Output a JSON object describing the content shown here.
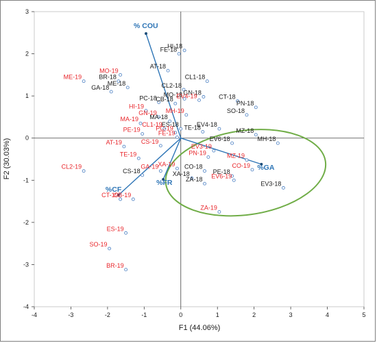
{
  "chart_data": {
    "type": "scatter",
    "xlabel": "F1 (44.06%)",
    "ylabel": "F2 (30.03%)",
    "xlim": [
      -4,
      5
    ],
    "ylim": [
      -4,
      3
    ],
    "xticks": [
      "-4",
      "-3",
      "-2",
      "-1",
      "0",
      "1",
      "2",
      "3",
      "4",
      "5"
    ],
    "yticks": [
      "-4",
      "-3",
      "-2",
      "-1",
      "0",
      "1",
      "2",
      "3"
    ],
    "grid": false,
    "colors": {
      "group_18": "#1a1a1a",
      "group_19": "#e8262b",
      "marker": "#5b8bc8",
      "vector": "#2e75b6",
      "ellipse": "#70ad47"
    },
    "points": [
      {
        "label": "HI-18",
        "x": 0.1,
        "y": 2.08,
        "group": "18"
      },
      {
        "label": "FE-18",
        "x": -0.05,
        "y": 2.0,
        "group": "18"
      },
      {
        "label": "AT-18",
        "x": -0.35,
        "y": 1.6,
        "group": "18"
      },
      {
        "label": "ME-19",
        "x": -2.65,
        "y": 1.35,
        "group": "19"
      },
      {
        "label": "MO-19",
        "x": -1.65,
        "y": 1.5,
        "group": "19"
      },
      {
        "label": "BR-18",
        "x": -1.7,
        "y": 1.35,
        "group": "18"
      },
      {
        "label": "ME-18",
        "x": -1.45,
        "y": 1.2,
        "group": "18"
      },
      {
        "label": "GA-18",
        "x": -1.9,
        "y": 1.1,
        "group": "18"
      },
      {
        "label": "CL1-18",
        "x": 0.72,
        "y": 1.35,
        "group": "18"
      },
      {
        "label": "CL2-18",
        "x": 0.08,
        "y": 1.15,
        "group": "18"
      },
      {
        "label": "GN-18",
        "x": 0.62,
        "y": 0.98,
        "group": "18"
      },
      {
        "label": "CT-18",
        "x": 1.55,
        "y": 0.88,
        "group": "18"
      },
      {
        "label": "MO-18",
        "x": 0.1,
        "y": 0.93,
        "group": "18"
      },
      {
        "label": "EV4-19",
        "x": 0.5,
        "y": 0.9,
        "group": "19"
      },
      {
        "label": "PC-18",
        "x": -0.6,
        "y": 0.85,
        "group": "18"
      },
      {
        "label": "CB-18",
        "x": -0.15,
        "y": 0.82,
        "group": "18"
      },
      {
        "label": "HI-19",
        "x": -0.95,
        "y": 0.65,
        "group": "19"
      },
      {
        "label": "PN-18",
        "x": 2.05,
        "y": 0.73,
        "group": "18"
      },
      {
        "label": "SO-18",
        "x": 1.8,
        "y": 0.55,
        "group": "18"
      },
      {
        "label": "MH-19",
        "x": 0.15,
        "y": 0.55,
        "group": "19"
      },
      {
        "label": "GN-19",
        "x": -0.6,
        "y": 0.5,
        "group": "19"
      },
      {
        "label": "MA-18",
        "x": -0.3,
        "y": 0.4,
        "group": "18"
      },
      {
        "label": "MA-19",
        "x": -1.1,
        "y": 0.35,
        "group": "19"
      },
      {
        "label": "ES-18",
        "x": 0.0,
        "y": 0.22,
        "group": "18"
      },
      {
        "label": "EV4-18",
        "x": 1.05,
        "y": 0.22,
        "group": "18"
      },
      {
        "label": "CL1-19",
        "x": -0.45,
        "y": 0.22,
        "group": "19"
      },
      {
        "label": "TE-18",
        "x": 0.6,
        "y": 0.15,
        "group": "18"
      },
      {
        "label": "PC-19",
        "x": -0.15,
        "y": 0.13,
        "group": "19"
      },
      {
        "label": "PE-19",
        "x": -1.05,
        "y": 0.1,
        "group": "19"
      },
      {
        "label": "MZ-18",
        "x": 2.05,
        "y": 0.08,
        "group": "18"
      },
      {
        "label": "FE-19",
        "x": -0.1,
        "y": 0.02,
        "group": "19"
      },
      {
        "label": "MH-18",
        "x": 2.65,
        "y": -0.12,
        "group": "18"
      },
      {
        "label": "EV6-18",
        "x": 1.4,
        "y": -0.12,
        "group": "18"
      },
      {
        "label": "AT-19",
        "x": -1.55,
        "y": -0.2,
        "group": "19"
      },
      {
        "label": "CS-19",
        "x": -0.55,
        "y": -0.18,
        "group": "19"
      },
      {
        "label": "EV3-19",
        "x": 0.9,
        "y": -0.3,
        "group": "19"
      },
      {
        "label": "TE-19",
        "x": -1.15,
        "y": -0.48,
        "group": "19"
      },
      {
        "label": "PN-19",
        "x": 0.75,
        "y": -0.45,
        "group": "19"
      },
      {
        "label": "MZ-19",
        "x": 1.8,
        "y": -0.52,
        "group": "19"
      },
      {
        "label": "CL2-19",
        "x": -2.65,
        "y": -0.78,
        "group": "19"
      },
      {
        "label": "CS-18",
        "x": -1.05,
        "y": -0.88,
        "group": "18"
      },
      {
        "label": "XA-19",
        "x": -0.1,
        "y": -0.72,
        "group": "19"
      },
      {
        "label": "GA-19",
        "x": -0.55,
        "y": -0.78,
        "group": "19"
      },
      {
        "label": "CO-18",
        "x": 0.65,
        "y": -0.78,
        "group": "18"
      },
      {
        "label": "CO-19",
        "x": 1.95,
        "y": -0.75,
        "group": "19"
      },
      {
        "label": "XA-18",
        "x": 0.3,
        "y": -0.95,
        "group": "18"
      },
      {
        "label": "PE-18",
        "x": 1.4,
        "y": -0.9,
        "group": "18"
      },
      {
        "label": "EV6-19",
        "x": 1.45,
        "y": -1.0,
        "group": "19"
      },
      {
        "label": "ZA-18",
        "x": 0.65,
        "y": -1.08,
        "group": "18"
      },
      {
        "label": "EV3-18",
        "x": 2.8,
        "y": -1.18,
        "group": "18"
      },
      {
        "label": "CT-19",
        "x": -1.65,
        "y": -1.45,
        "group": "19"
      },
      {
        "label": "CB-19",
        "x": -1.3,
        "y": -1.45,
        "group": "19"
      },
      {
        "label": "ZA-19",
        "x": 1.05,
        "y": -1.75,
        "group": "19"
      },
      {
        "label": "ES-19",
        "x": -1.5,
        "y": -2.25,
        "group": "19"
      },
      {
        "label": "SO-19",
        "x": -1.95,
        "y": -2.62,
        "group": "19"
      },
      {
        "label": "BR-19",
        "x": -1.5,
        "y": -3.12,
        "group": "19"
      }
    ],
    "vectors": [
      {
        "label": "% COU",
        "x": -0.95,
        "y": 2.48
      },
      {
        "label": "%CF",
        "x": -1.7,
        "y": -1.35
      },
      {
        "label": "%FR",
        "x": -0.48,
        "y": -0.98
      },
      {
        "label": "%GA",
        "x": 2.2,
        "y": -0.62
      }
    ],
    "ellipse": {
      "cx": 1.77,
      "cy": -0.82,
      "rx": 2.2,
      "ry": 1.0,
      "rotate_deg": -8
    }
  }
}
